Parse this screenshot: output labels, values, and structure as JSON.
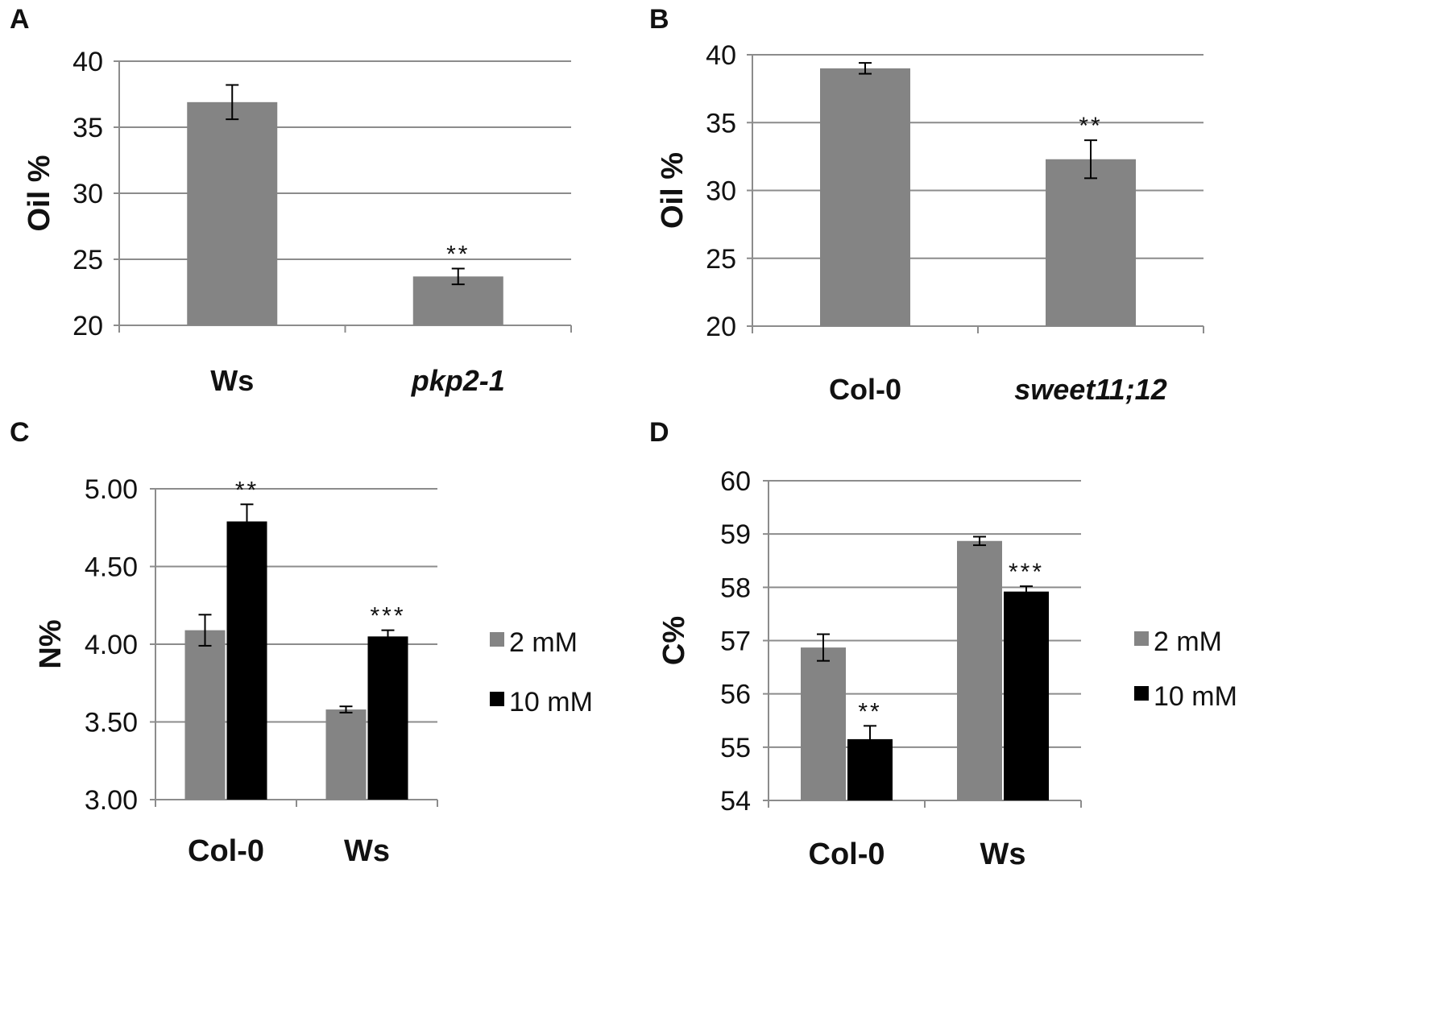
{
  "figure": {
    "panels": [
      "A",
      "B",
      "C",
      "D"
    ]
  },
  "colors": {
    "bar_gray": "#848484",
    "bar_black": "#000000",
    "grid": "#8c8c8c",
    "axis": "#8c8c8c",
    "text": "#111111"
  },
  "chart_data": [
    {
      "panel": "A",
      "type": "bar",
      "ylabel": "Oil %",
      "ylim": [
        20,
        40
      ],
      "yticks": [
        "20",
        "25",
        "30",
        "35",
        "40"
      ],
      "categories": [
        {
          "label": "Ws",
          "italic": false
        },
        {
          "label": "pkp2-1",
          "italic": true
        }
      ],
      "series": [
        {
          "name": "",
          "color": "#848484",
          "values": [
            36.9,
            23.7
          ],
          "errors": [
            1.3,
            0.6
          ],
          "significance": [
            "",
            "**"
          ]
        }
      ],
      "legend": []
    },
    {
      "panel": "B",
      "type": "bar",
      "ylabel": "Oil %",
      "ylim": [
        20,
        40
      ],
      "yticks": [
        "20",
        "25",
        "30",
        "35",
        "40"
      ],
      "categories": [
        {
          "label": "Col-0",
          "italic": false
        },
        {
          "label": "sweet11;12",
          "italic": true
        }
      ],
      "series": [
        {
          "name": "",
          "color": "#848484",
          "values": [
            39.0,
            32.3
          ],
          "errors": [
            0.4,
            1.4
          ],
          "significance": [
            "",
            "**"
          ]
        }
      ],
      "legend": []
    },
    {
      "panel": "C",
      "type": "bar",
      "ylabel": "N%",
      "ylim": [
        3.0,
        5.0
      ],
      "yticks": [
        "3.00",
        "3.50",
        "4.00",
        "4.50",
        "5.00"
      ],
      "categories": [
        {
          "label": "Col-0",
          "italic": false
        },
        {
          "label": "Ws",
          "italic": false
        }
      ],
      "series": [
        {
          "name": "2 mM",
          "color": "#848484",
          "values": [
            4.09,
            3.58
          ],
          "errors": [
            0.1,
            0.02
          ],
          "significance": [
            "",
            ""
          ]
        },
        {
          "name": "10 mM",
          "color": "#000000",
          "values": [
            4.79,
            4.05
          ],
          "errors": [
            0.11,
            0.04
          ],
          "significance": [
            "**",
            "***"
          ]
        }
      ],
      "legend": [
        "2 mM",
        "10 mM"
      ]
    },
    {
      "panel": "D",
      "type": "bar",
      "ylabel": "C%",
      "ylim": [
        54,
        60
      ],
      "yticks": [
        "54",
        "55",
        "56",
        "57",
        "58",
        "59",
        "60"
      ],
      "categories": [
        {
          "label": "Col-0",
          "italic": false
        },
        {
          "label": "Ws",
          "italic": false
        }
      ],
      "series": [
        {
          "name": "2 mM",
          "color": "#848484",
          "values": [
            56.87,
            58.87
          ],
          "errors": [
            0.25,
            0.08
          ],
          "significance": [
            "",
            ""
          ]
        },
        {
          "name": "10 mM",
          "color": "#000000",
          "values": [
            55.15,
            57.92
          ],
          "errors": [
            0.25,
            0.1
          ],
          "significance": [
            "**",
            "***"
          ]
        }
      ],
      "legend": [
        "2 mM",
        "10 mM"
      ]
    }
  ]
}
